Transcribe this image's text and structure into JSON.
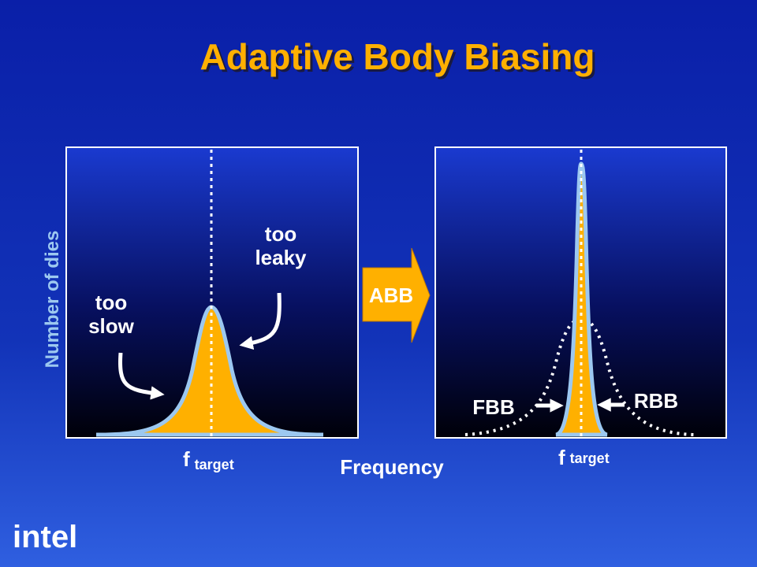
{
  "title": "Adaptive Body Biasing",
  "y_axis_label": "Number of dies",
  "x_axis_label": "Frequency",
  "left_panel": {
    "annotations": [
      {
        "lines": [
          "too",
          "slow"
        ]
      },
      {
        "lines": [
          "too",
          "leaky"
        ]
      }
    ],
    "target_label": {
      "symbol": "f",
      "subscript": "target"
    }
  },
  "arrow_label": "ABB",
  "right_panel": {
    "annotations": [
      "FBB",
      "RBB"
    ],
    "target_label": {
      "symbol": "f",
      "subscript": "target"
    }
  },
  "logo": "intel"
}
